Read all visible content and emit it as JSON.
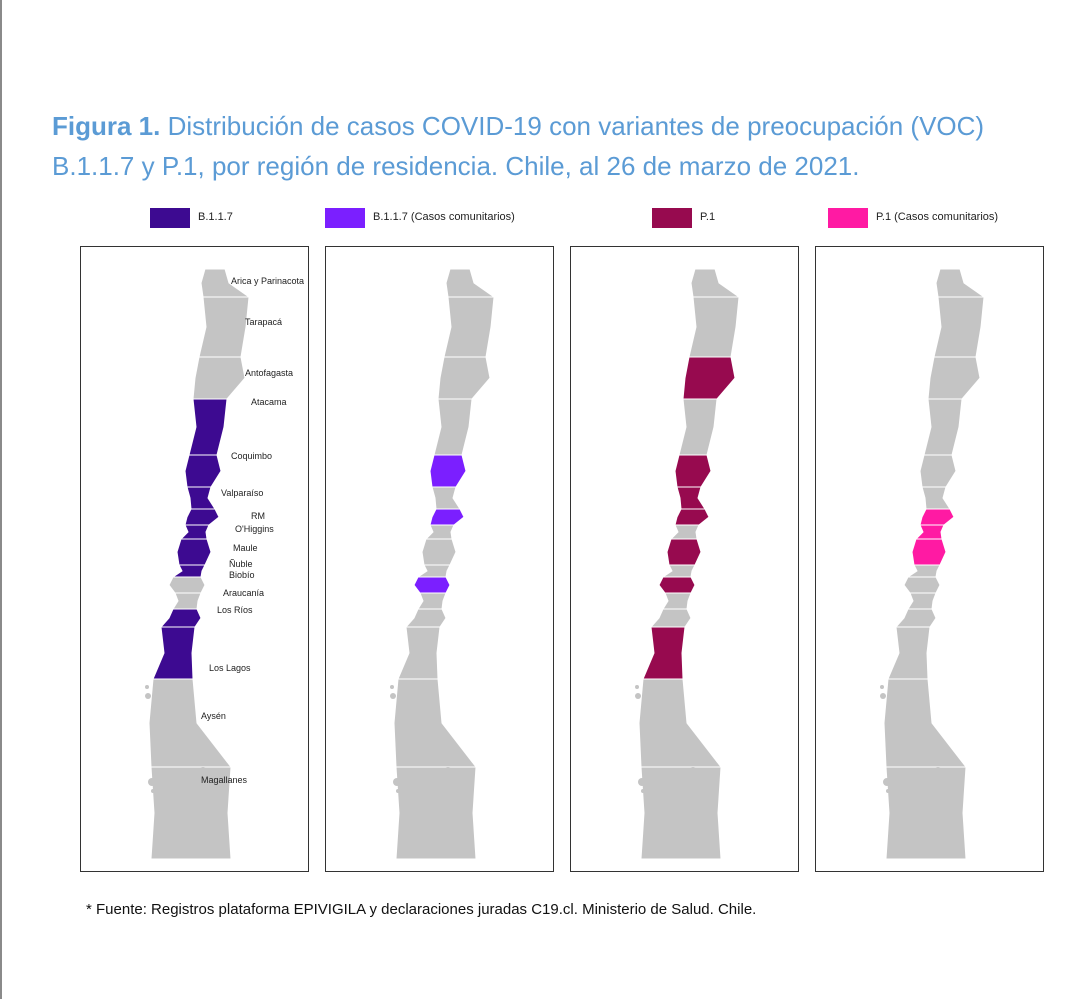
{
  "title": {
    "bold": "Figura 1.",
    "text": " Distribución de casos COVID-19 con variantes de preocupación (VOC) B.1.1.7 y P.1, por región de residencia. Chile, al 26 de marzo de 2021."
  },
  "legend": [
    {
      "label": "B.1.1.7",
      "color": "#3d0a91"
    },
    {
      "label": "B.1.1.7 (Casos comunitarios)",
      "color": "#7b1fff"
    },
    {
      "label": "P.1",
      "color": "#970a4f"
    },
    {
      "label": "P.1 (Casos comunitarios)",
      "color": "#ff1aa3"
    }
  ],
  "colors": {
    "none": "#c4c4c4",
    "border": "#ffffff"
  },
  "regions": [
    "Arica y Parinacota",
    "Tarapacá",
    "Antofagasta",
    "Atacama",
    "Coquimbo",
    "Valparaíso",
    "RM",
    "O'Higgins",
    "Maule",
    "Ñuble",
    "Biobío",
    "Araucanía",
    "Los Ríos",
    "Los Lagos",
    "Aysén",
    "Magallanes"
  ],
  "maps": [
    {
      "name": "B.1.1.7",
      "color": "#3d0a91",
      "regions_with_cases": [
        "Atacama",
        "Coquimbo",
        "Valparaíso",
        "RM",
        "O'Higgins",
        "Maule",
        "Ñuble",
        "Los Ríos",
        "Los Lagos"
      ]
    },
    {
      "name": "B.1.1.7 (Casos comunitarios)",
      "color": "#7b1fff",
      "regions_with_cases": [
        "Coquimbo",
        "RM",
        "Biobío"
      ]
    },
    {
      "name": "P.1",
      "color": "#970a4f",
      "regions_with_cases": [
        "Antofagasta",
        "Coquimbo",
        "Valparaíso",
        "RM",
        "Maule",
        "Biobío",
        "Los Lagos"
      ]
    },
    {
      "name": "P.1 (Casos comunitarios)",
      "color": "#ff1aa3",
      "regions_with_cases": [
        "RM",
        "O'Higgins",
        "Maule"
      ]
    }
  ],
  "source": "* Fuente: Registros plataforma EPIVIGILA y declaraciones juradas C19.cl. Ministerio de Salud. Chile."
}
